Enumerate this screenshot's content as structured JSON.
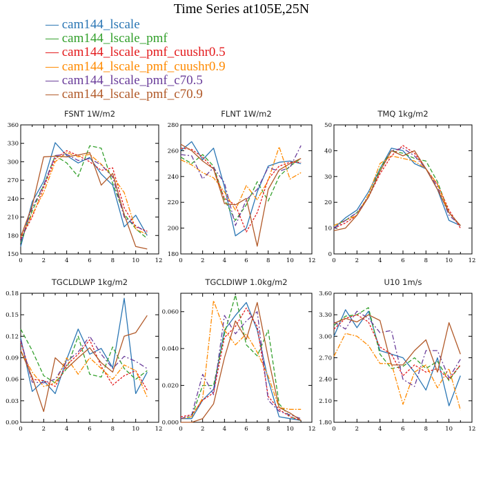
{
  "title": "Time Series at105E,25N",
  "legend": [
    {
      "label": "cam144_lscale",
      "color": "#2a76b4",
      "dash": ""
    },
    {
      "label": "cam144_lscale_pmf",
      "color": "#33a02c",
      "dash": "6,3"
    },
    {
      "label": "cam144_lscale_pmf_cuushr0.5",
      "color": "#e31a1c",
      "dash": "3,2"
    },
    {
      "label": "cam144_lscale_pmf_cuushr0.9",
      "color": "#ff8a00",
      "dash": "7,2,2,2"
    },
    {
      "label": "cam144_lscale_pmf_c70.5",
      "color": "#6a3d9a",
      "dash": "7,3,2,3"
    },
    {
      "label": "cam144_lscale_pmf_c70.9",
      "color": "#b15928",
      "dash": ""
    }
  ],
  "chart_data": [
    {
      "type": "line",
      "title": "FSNT   1W/m2",
      "x": [
        0,
        1,
        2,
        3,
        4,
        5,
        6,
        7,
        8,
        9,
        10,
        11
      ],
      "xlim": [
        0,
        12
      ],
      "xticks": [
        "0",
        "2",
        "4",
        "6",
        "8",
        "10",
        "12"
      ],
      "ylim": [
        150,
        360
      ],
      "yticks": [
        "150",
        "180",
        "210",
        "240",
        "270",
        "300",
        "330",
        "360"
      ],
      "series": [
        {
          "name": "cam144_lscale",
          "values": [
            162,
            235,
            268,
            331,
            310,
            298,
            307,
            280,
            262,
            194,
            213,
            180
          ]
        },
        {
          "name": "cam144_lscale_pmf",
          "values": [
            168,
            220,
            262,
            310,
            298,
            276,
            326,
            322,
            265,
            215,
            191,
            175
          ]
        },
        {
          "name": "cam144_lscale_pmf_cuushr0.5",
          "values": [
            175,
            210,
            258,
            305,
            318,
            310,
            300,
            286,
            290,
            225,
            194,
            187
          ]
        },
        {
          "name": "cam144_lscale_pmf_cuushr0.9",
          "values": [
            178,
            214,
            250,
            300,
            315,
            308,
            312,
            296,
            276,
            250,
            190,
            182
          ]
        },
        {
          "name": "cam144_lscale_pmf_c70.5",
          "values": [
            170,
            225,
            262,
            310,
            312,
            302,
            305,
            295,
            275,
            210,
            196,
            185
          ]
        },
        {
          "name": "cam144_lscale_pmf_c70.9",
          "values": [
            178,
            228,
            308,
            309,
            308,
            311,
            315,
            262,
            281,
            214,
            162,
            158
          ]
        }
      ]
    },
    {
      "type": "line",
      "title": "FLNT   1W/m2",
      "x": [
        0,
        1,
        2,
        3,
        4,
        5,
        6,
        7,
        8,
        9,
        10,
        11
      ],
      "xlim": [
        0,
        12
      ],
      "xticks": [
        "0",
        "2",
        "4",
        "6",
        "8",
        "10",
        "12"
      ],
      "ylim": [
        180,
        280
      ],
      "yticks": [
        "180",
        "200",
        "220",
        "240",
        "260",
        "280"
      ],
      "series": [
        {
          "name": "cam144_lscale",
          "values": [
            260,
            267,
            253,
            262,
            232,
            194,
            200,
            228,
            248,
            251,
            252,
            250
          ]
        },
        {
          "name": "cam144_lscale_pmf",
          "values": [
            255,
            250,
            257,
            248,
            222,
            206,
            218,
            236,
            221,
            240,
            248,
            254
          ]
        },
        {
          "name": "cam144_lscale_pmf_cuushr0.5",
          "values": [
            262,
            261,
            255,
            246,
            223,
            218,
            197,
            212,
            238,
            248,
            251,
            251
          ]
        },
        {
          "name": "cam144_lscale_pmf_cuushr0.9",
          "values": [
            253,
            249,
            243,
            239,
            228,
            214,
            233,
            222,
            237,
            263,
            238,
            243
          ]
        },
        {
          "name": "cam144_lscale_pmf_c70.5",
          "values": [
            257,
            256,
            238,
            247,
            235,
            202,
            222,
            230,
            247,
            244,
            247,
            264
          ]
        },
        {
          "name": "cam144_lscale_pmf_c70.9",
          "values": [
            265,
            260,
            252,
            246,
            219,
            218,
            223,
            186,
            230,
            245,
            250,
            254
          ]
        }
      ]
    },
    {
      "type": "line",
      "title": "TMQ   1kg/m2",
      "x": [
        0,
        1,
        2,
        3,
        4,
        5,
        6,
        7,
        8,
        9,
        10,
        11
      ],
      "xlim": [
        0,
        12
      ],
      "xticks": [
        "0",
        "2",
        "4",
        "6",
        "8",
        "10",
        "12"
      ],
      "ylim": [
        0,
        50
      ],
      "yticks": [
        "0",
        "10",
        "20",
        "30",
        "40",
        "50"
      ],
      "series": [
        {
          "name": "cam144_lscale",
          "values": [
            10,
            14,
            17,
            24,
            33,
            41,
            40,
            35,
            33,
            25,
            13,
            11
          ]
        },
        {
          "name": "cam144_lscale_pmf",
          "values": [
            11,
            13,
            16,
            22,
            33,
            40,
            39,
            37,
            36,
            28,
            16,
            11
          ]
        },
        {
          "name": "cam144_lscale_pmf_cuushr0.5",
          "values": [
            10,
            12,
            15,
            22,
            31,
            38,
            42,
            39,
            33,
            27,
            17,
            10
          ]
        },
        {
          "name": "cam144_lscale_pmf_cuushr0.9",
          "values": [
            11,
            13,
            15,
            23,
            35,
            38,
            37,
            36,
            33,
            27,
            16,
            11
          ]
        },
        {
          "name": "cam144_lscale_pmf_c70.5",
          "values": [
            10,
            13,
            16,
            22,
            32,
            40,
            41,
            38,
            33,
            26,
            15,
            11
          ]
        },
        {
          "name": "cam144_lscale_pmf_c70.9",
          "values": [
            9,
            10,
            15,
            22,
            32,
            40,
            38,
            40,
            33,
            25,
            16,
            11
          ]
        }
      ]
    },
    {
      "type": "line",
      "title": "TGCLDLWP   1kg/m2",
      "x": [
        0,
        1,
        2,
        3,
        4,
        5,
        6,
        7,
        8,
        9,
        10,
        11
      ],
      "xlim": [
        0,
        12
      ],
      "xticks": [
        "0",
        "2",
        "4",
        "6",
        "8",
        "10",
        "12"
      ],
      "ylim": [
        0.0,
        0.18
      ],
      "yticks": [
        "0.00",
        "0.03",
        "0.06",
        "0.09",
        "0.12",
        "0.15",
        "0.18"
      ],
      "series": [
        {
          "name": "cam144_lscale",
          "values": [
            0.118,
            0.043,
            0.058,
            0.04,
            0.088,
            0.13,
            0.095,
            0.103,
            0.076,
            0.173,
            0.04,
            0.07
          ]
        },
        {
          "name": "cam144_lscale_pmf",
          "values": [
            0.13,
            0.1,
            0.065,
            0.055,
            0.075,
            0.12,
            0.067,
            0.063,
            0.105,
            0.075,
            0.06,
            0.072
          ]
        },
        {
          "name": "cam144_lscale_pmf_cuushr0.5",
          "values": [
            0.112,
            0.06,
            0.058,
            0.05,
            0.08,
            0.095,
            0.115,
            0.078,
            0.052,
            0.065,
            0.072,
            0.045
          ]
        },
        {
          "name": "cam144_lscale_pmf_cuushr0.9",
          "values": [
            0.1,
            0.07,
            0.05,
            0.055,
            0.09,
            0.067,
            0.09,
            0.075,
            0.06,
            0.08,
            0.072,
            0.035
          ]
        },
        {
          "name": "cam144_lscale_pmf_c70.5",
          "values": [
            0.115,
            0.056,
            0.055,
            0.06,
            0.085,
            0.098,
            0.12,
            0.095,
            0.075,
            0.092,
            0.085,
            0.075
          ]
        },
        {
          "name": "cam144_lscale_pmf_c70.9",
          "values": [
            0.1,
            0.063,
            0.015,
            0.09,
            0.075,
            0.09,
            0.104,
            0.083,
            0.07,
            0.12,
            0.125,
            0.149
          ]
        }
      ]
    },
    {
      "type": "line",
      "title": "TGCLDIWP   1.0kg/m2",
      "x": [
        0,
        1,
        2,
        3,
        4,
        5,
        6,
        7,
        8,
        9,
        10,
        11
      ],
      "xlim": [
        0,
        12
      ],
      "xticks": [
        "0",
        "2",
        "4",
        "6",
        "8",
        "10",
        "12"
      ],
      "ylim": [
        0.0,
        0.07
      ],
      "yticks": [
        "0.000",
        "0.020",
        "0.040",
        "0.060"
      ],
      "series": [
        {
          "name": "cam144_lscale",
          "values": [
            0.002,
            0.002,
            0.012,
            0.018,
            0.05,
            0.058,
            0.065,
            0.05,
            0.023,
            0.003,
            0.002,
            0.001
          ]
        },
        {
          "name": "cam144_lscale_pmf",
          "values": [
            0.002,
            0.003,
            0.02,
            0.02,
            0.048,
            0.069,
            0.042,
            0.036,
            0.05,
            0.01,
            0.003,
            0.001
          ]
        },
        {
          "name": "cam144_lscale_pmf_cuushr0.5",
          "values": [
            0.003,
            0.004,
            0.012,
            0.016,
            0.046,
            0.052,
            0.062,
            0.052,
            0.014,
            0.007,
            0.003,
            0.001
          ]
        },
        {
          "name": "cam144_lscale_pmf_cuushr0.9",
          "values": [
            0.002,
            0.003,
            0.013,
            0.066,
            0.05,
            0.042,
            0.048,
            0.038,
            0.025,
            0.008,
            0.007,
            0.007
          ]
        },
        {
          "name": "cam144_lscale_pmf_c70.5",
          "values": [
            0.002,
            0.004,
            0.026,
            0.015,
            0.058,
            0.048,
            0.055,
            0.06,
            0.012,
            0.006,
            0.004,
            0.002
          ]
        },
        {
          "name": "cam144_lscale_pmf_c70.9",
          "values": [
            0.0,
            0.0,
            0.002,
            0.01,
            0.035,
            0.055,
            0.045,
            0.065,
            0.035,
            0.008,
            0.005,
            0.001
          ]
        }
      ]
    },
    {
      "type": "line",
      "title": "U10   1m/s",
      "x": [
        0,
        1,
        2,
        3,
        4,
        5,
        6,
        7,
        8,
        9,
        10,
        11
      ],
      "xlim": [
        0,
        12
      ],
      "xticks": [
        "0",
        "2",
        "4",
        "6",
        "8",
        "10",
        "12"
      ],
      "ylim": [
        1.8,
        3.6
      ],
      "yticks": [
        "1.80",
        "2.10",
        "2.40",
        "2.70",
        "3.00",
        "3.30",
        "3.60"
      ],
      "series": [
        {
          "name": "cam144_lscale",
          "values": [
            3.0,
            3.37,
            3.12,
            3.35,
            2.8,
            2.75,
            2.7,
            2.5,
            2.25,
            2.7,
            2.03,
            2.45
          ]
        },
        {
          "name": "cam144_lscale_pmf",
          "values": [
            3.15,
            3.28,
            3.3,
            3.4,
            2.75,
            2.55,
            2.58,
            2.7,
            2.55,
            2.65,
            2.38,
            2.6
          ]
        },
        {
          "name": "cam144_lscale_pmf_cuushr0.5",
          "values": [
            3.1,
            3.25,
            3.3,
            3.2,
            2.85,
            2.75,
            2.45,
            2.6,
            2.5,
            2.55,
            2.4,
            2.6
          ]
        },
        {
          "name": "cam144_lscale_pmf_cuushr0.9",
          "values": [
            2.72,
            3.04,
            3.0,
            2.87,
            2.62,
            2.62,
            2.05,
            2.5,
            2.6,
            2.28,
            2.55,
            1.97
          ]
        },
        {
          "name": "cam144_lscale_pmf_c70.5",
          "values": [
            3.2,
            3.1,
            3.35,
            3.25,
            3.05,
            3.08,
            2.4,
            2.3,
            2.8,
            2.8,
            2.42,
            2.68
          ]
        },
        {
          "name": "cam144_lscale_pmf_c70.9",
          "values": [
            3.18,
            3.25,
            3.2,
            3.3,
            3.22,
            2.6,
            2.6,
            2.8,
            2.95,
            2.5,
            3.19,
            2.75
          ]
        }
      ]
    }
  ]
}
